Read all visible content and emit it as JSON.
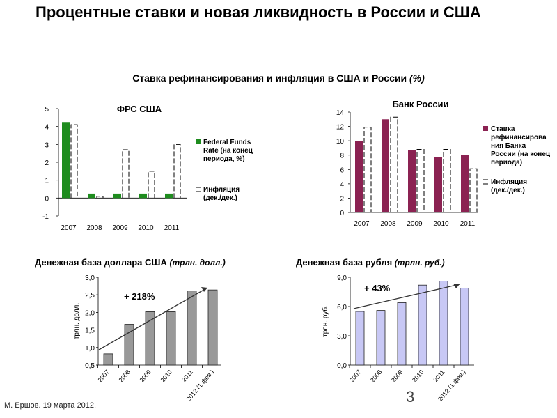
{
  "title": "Процентные ставки и новая ликвидность в России и США",
  "subtitle": {
    "main": "Ставка рефинансирования и инфляция в США и России",
    "unit": "(%)"
  },
  "footer": "М. Ершов. 19 марта 2012.",
  "page_number": "3",
  "colors": {
    "us_rate": "#1e8c1e",
    "ru_rate": "#8b2252",
    "base_usd": "#999999",
    "base_rub": "#c8c8f5"
  },
  "chart_data": [
    {
      "id": "fed",
      "type": "bar",
      "title": "ФРС США",
      "categories": [
        "2007",
        "2008",
        "2009",
        "2010",
        "2011"
      ],
      "series": [
        {
          "name": "Federal Funds Rate (на конец периода, %)",
          "values": [
            4.25,
            0.25,
            0.25,
            0.25,
            0.25
          ]
        },
        {
          "name": "Инфляция (дек./дек.)",
          "values": [
            4.1,
            0.1,
            2.7,
            1.5,
            3.0
          ]
        }
      ],
      "legend": [
        "Federal Funds Rate (на конец периода, %)",
        "Инфляция (дек./дек.)"
      ],
      "ylim": [
        -1,
        5
      ],
      "yticks": [
        "5",
        "4",
        "3",
        "2",
        "1",
        "0",
        "-1"
      ]
    },
    {
      "id": "cbr",
      "type": "bar",
      "title": "Банк России",
      "categories": [
        "2007",
        "2008",
        "2009",
        "2010",
        "2011"
      ],
      "series": [
        {
          "name": "Ставка рефинансирования Банка России (на конец периода)",
          "values": [
            10,
            13,
            8.75,
            7.75,
            8
          ]
        },
        {
          "name": "Инфляция (дек./дек.)",
          "values": [
            11.9,
            13.3,
            8.8,
            8.8,
            6.1
          ]
        }
      ],
      "legend": [
        "Ставка рефинансирования Банка России (на конец периода)",
        "Инфляция (дек./дек.)"
      ],
      "ylim": [
        0,
        14
      ],
      "yticks": [
        "14",
        "12",
        "10",
        "8",
        "6",
        "4",
        "2",
        "0"
      ]
    },
    {
      "id": "usd_base",
      "type": "bar",
      "title": "Денежная база доллара США",
      "unit": "(трлн. долл.)",
      "ylabel": "трлн. долл.",
      "categories": [
        "2007",
        "2008",
        "2009",
        "2010",
        "2011",
        "2012 (1 фев.)"
      ],
      "values": [
        0.82,
        1.66,
        2.02,
        2.02,
        2.61,
        2.64
      ],
      "ylim": [
        0.5,
        3.0
      ],
      "yticks": [
        "3,0",
        "2,5",
        "2,0",
        "1,5",
        "1,0",
        "0,5"
      ],
      "annotation": "+ 218%"
    },
    {
      "id": "rub_base",
      "type": "bar",
      "title": "Денежная база рубля",
      "unit": "(трлн. руб.)",
      "ylabel": "трлн. руб.",
      "categories": [
        "2007",
        "2008",
        "2009",
        "2010",
        "2011",
        "2012 (1 фев.)"
      ],
      "values": [
        5.5,
        5.6,
        6.4,
        8.2,
        8.6,
        7.9
      ],
      "ylim": [
        0,
        9.0
      ],
      "yticks": [
        "9,0",
        "6,0",
        "3,0",
        "0,0"
      ],
      "annotation": "+ 43%"
    }
  ]
}
